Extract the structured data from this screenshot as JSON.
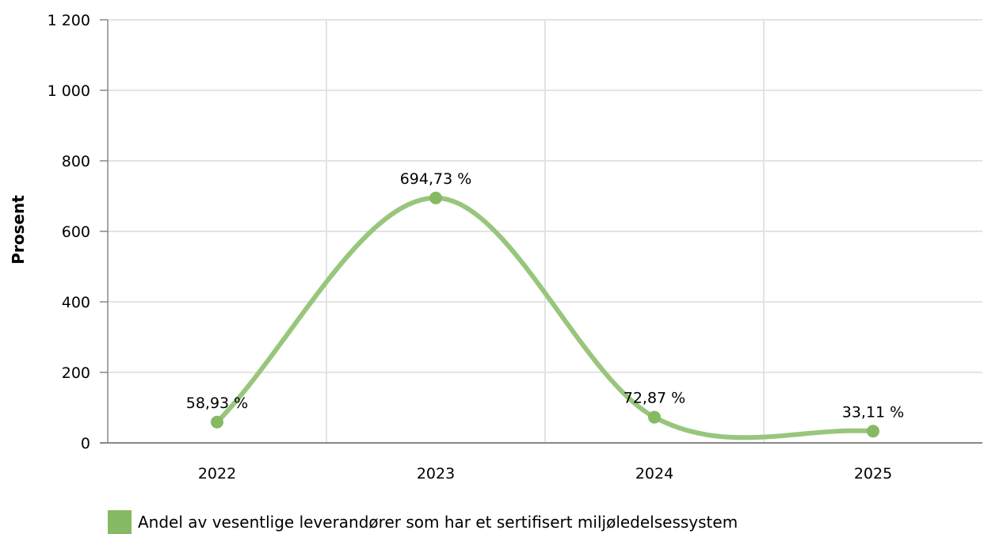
{
  "chart_data": {
    "type": "line",
    "categories": [
      "2022",
      "2023",
      "2024",
      "2025"
    ],
    "series": [
      {
        "name": "Andel av vesentlige leverandører som har et sertifisert miljøledelsessystem",
        "values": [
          58.93,
          694.73,
          72.87,
          33.11
        ],
        "labels": [
          "58,93 %",
          "694,73 %",
          "72,87 %",
          "33,11 %"
        ],
        "color": "#86b963"
      }
    ],
    "ylabel": "Prosent",
    "xlabel": "",
    "ylim": [
      0,
      1200
    ],
    "yticks": [
      0,
      200,
      400,
      600,
      800,
      1000,
      1200
    ],
    "ytick_labels": [
      "0",
      "200",
      "400",
      "600",
      "800",
      "1 000",
      "1 200"
    ],
    "grid": true,
    "legend_position": "bottom-left"
  }
}
